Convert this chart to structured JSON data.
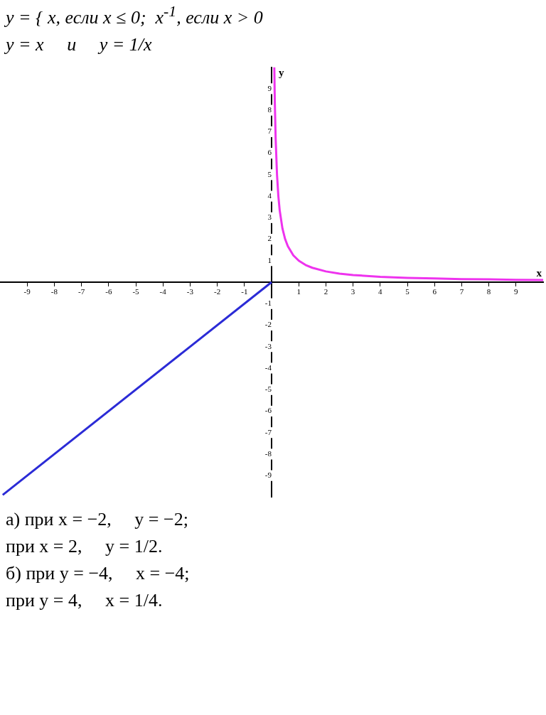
{
  "chart_data": {
    "type": "line",
    "title": "y = { x, если x ≤ 0;  x$^{-1}$, если x > 0",
    "subtitle": "y = x     и     y = 1/x",
    "xlabel": "x",
    "ylabel": "y",
    "series": [
      {
        "color": "#2b2bd6",
        "x": [
          -9.9,
          0
        ],
        "values": [
          -9.9,
          0
        ]
      },
      {
        "color": "#ee33ee",
        "x": [
          0.1,
          0.12,
          0.15,
          0.2,
          0.25,
          0.3,
          0.4,
          0.5,
          0.6,
          0.8,
          1,
          1.25,
          1.5,
          2,
          2.5,
          3,
          4,
          5,
          6,
          7,
          8,
          9,
          10
        ],
        "values": [
          10,
          8.33,
          6.67,
          5,
          4,
          3.33,
          2.5,
          2,
          1.67,
          1.25,
          1,
          0.8,
          0.67,
          0.5,
          0.4,
          0.33,
          0.25,
          0.2,
          0.17,
          0.14,
          0.13,
          0.11,
          0.1
        ]
      }
    ],
    "xlim": [
      -10,
      10
    ],
    "ylim": [
      -10,
      10
    ],
    "xticks": [
      -9,
      -8,
      -7,
      -6,
      -5,
      -4,
      -3,
      -2,
      -1,
      1,
      2,
      3,
      4,
      5,
      6,
      7,
      8,
      9
    ],
    "yticks": [
      -9,
      -8,
      -7,
      -6,
      -5,
      -4,
      -3,
      -2,
      -1,
      1,
      2,
      3,
      4,
      5,
      6,
      7,
      8,
      9
    ],
    "grid": false,
    "legend": false,
    "marker": "none",
    "line_style": "solid",
    "annotations": [
      "а) при x = −2,     y = −2;",
      "при x = 2,     y = 1/2.",
      "б) при y = −4,     x = −4;",
      "при y = 4,     x = 1/4."
    ]
  }
}
